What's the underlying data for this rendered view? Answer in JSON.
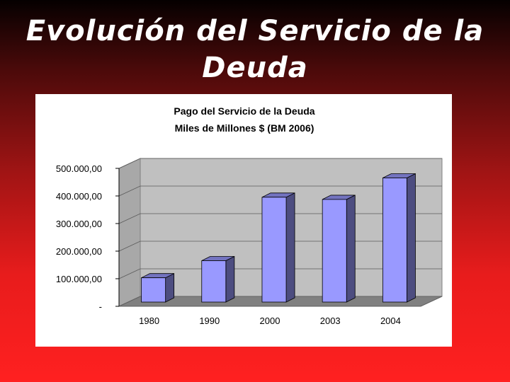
{
  "slide": {
    "title_line1": "Evolución del Servicio de la",
    "title_line2": "Deuda"
  },
  "chart_data": {
    "type": "bar",
    "title": "Pago del Servicio de la Deuda",
    "subtitle": "Miles de Millones $ (BM 2006)",
    "categories": [
      "1980",
      "1990",
      "2000",
      "2003",
      "2004"
    ],
    "values": [
      88000,
      150000,
      380000,
      372000,
      450000
    ],
    "ylim": [
      0,
      500000
    ],
    "yticks": [
      0,
      100000,
      200000,
      300000,
      400000,
      500000
    ],
    "ytick_labels": [
      "-",
      "100.000,00",
      "200.000,00",
      "300.000,00",
      "400.000,00",
      "500.000,00"
    ],
    "style": "3d-column",
    "bar_color": "#9999ff",
    "wall_color": "#c0c0c0",
    "floor_color": "#808080",
    "grid": true,
    "legend": "none"
  }
}
